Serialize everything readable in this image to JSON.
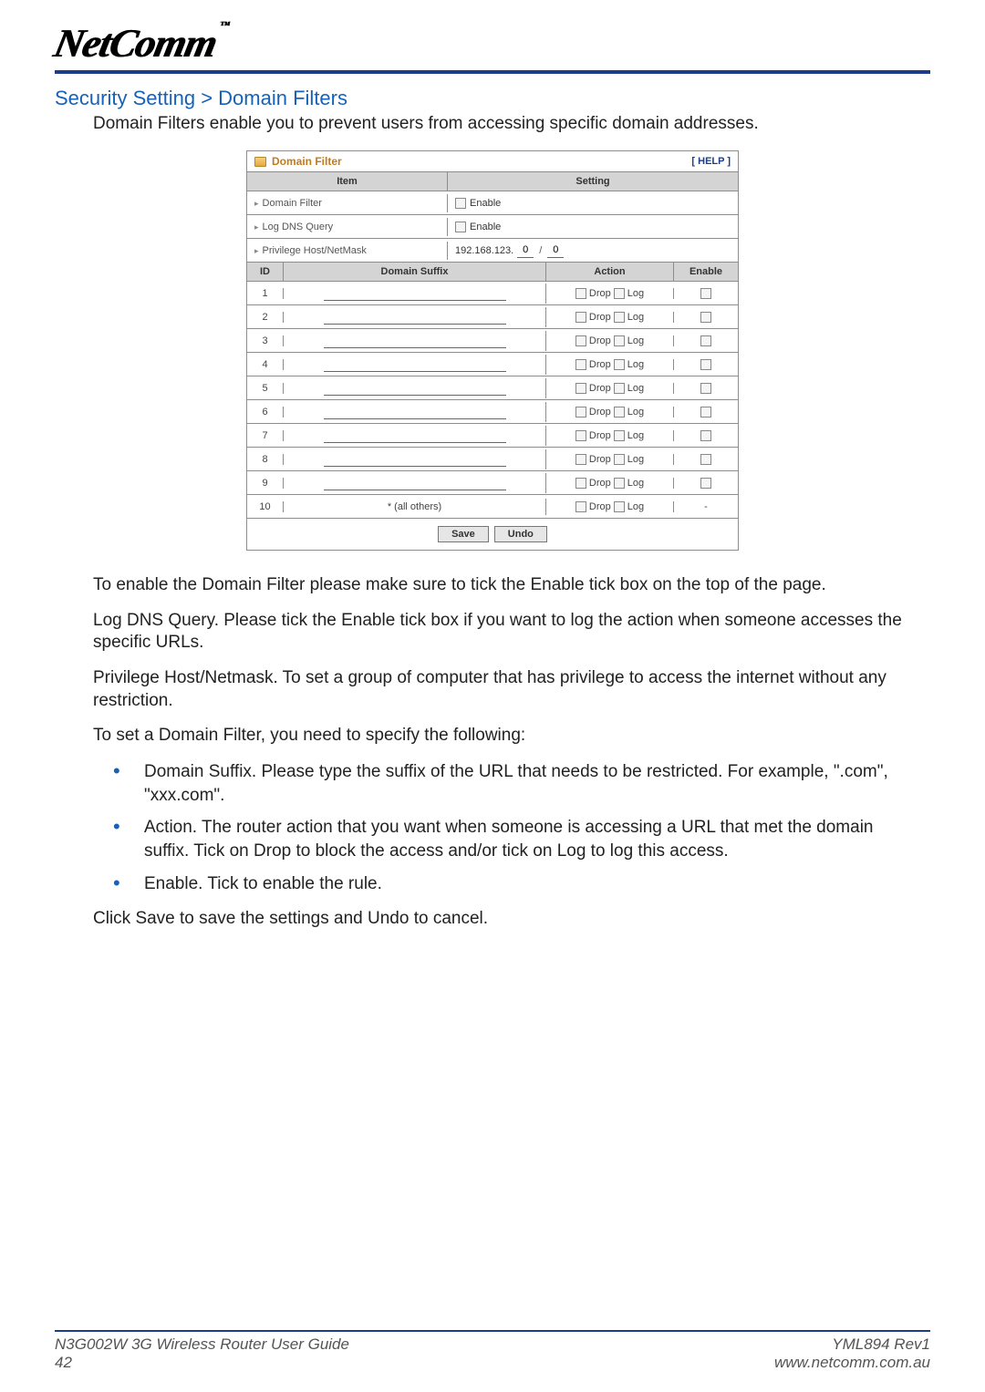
{
  "logo_text": "NetComm",
  "logo_tm": "™",
  "page_title": "Security Setting > Domain Filters",
  "intro": "Domain Filters enable you to prevent users from accessing specific domain addresses.",
  "panel": {
    "title": "Domain Filter",
    "help": "[ HELP ]",
    "head_item": "Item",
    "head_setting": "Setting",
    "item_domain_filter": "Domain Filter",
    "item_log_dns": "Log DNS Query",
    "item_priv_host": "Privilege Host/NetMask",
    "enable_label": "Enable",
    "ip_prefix": "192.168.123.",
    "ip_host_value": "0",
    "ip_mask_value": "0",
    "rules_head_id": "ID",
    "rules_head_suffix": "Domain Suffix",
    "rules_head_action": "Action",
    "rules_head_enable": "Enable",
    "action_drop": "Drop",
    "action_log": "Log",
    "all_others": "* (all others)",
    "save": "Save",
    "undo": "Undo",
    "row_count": 9
  },
  "paragraphs": {
    "p1": "To enable the Domain Filter please make sure to tick the Enable tick box on the top of the page.",
    "p2": "Log DNS Query. Please tick the Enable tick box if you want to log the action when someone accesses the specific URLs.",
    "p3": "Privilege Host/Netmask. To set a group of computer that has privilege to access the internet without any restriction.",
    "p4": "To set a Domain Filter, you need to specify the following:",
    "b1": "Domain Suffix. Please type the suffix of the URL that needs to be restricted. For example, \".com\", \"xxx.com\".",
    "b2": "Action. The router action that you want when someone is accessing a URL that met the domain suffix. Tick on Drop to block the access and/or tick on Log to log this access.",
    "b3": "Enable. Tick to enable the rule.",
    "p5": "Click Save to save the settings and Undo to cancel."
  },
  "footer": {
    "guide": "N3G002W 3G Wireless Router User Guide",
    "page": "42",
    "rev": "YML894 Rev1",
    "url": "www.netcomm.com.au"
  },
  "colors": {
    "accent": "#1762b8",
    "rule": "#1b3d8c"
  }
}
